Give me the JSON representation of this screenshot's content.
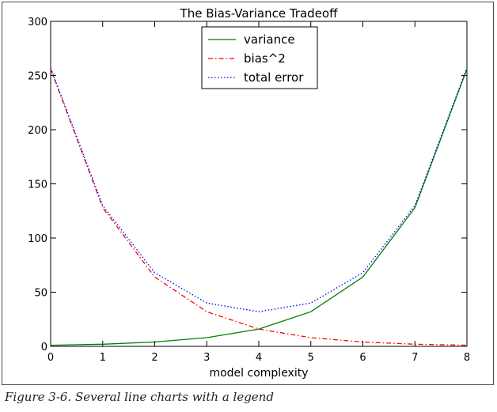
{
  "chart_data": {
    "type": "line",
    "title": "The Bias-Variance Tradeoff",
    "xlabel": "model complexity",
    "ylabel": "",
    "xlim": [
      0,
      8
    ],
    "ylim": [
      0,
      300
    ],
    "xticks": [
      "0",
      "1",
      "2",
      "3",
      "4",
      "5",
      "6",
      "7",
      "8"
    ],
    "yticks": [
      "0",
      "50",
      "100",
      "150",
      "200",
      "250",
      "300"
    ],
    "x": [
      0,
      1,
      2,
      3,
      4,
      5,
      6,
      7,
      8
    ],
    "grid": false,
    "legend_position": "top-center",
    "series": [
      {
        "name": "variance",
        "values": [
          1,
          2,
          4,
          8,
          16,
          32,
          64,
          128,
          256
        ],
        "color": "#008000",
        "style": "solid"
      },
      {
        "name": "bias^2",
        "values": [
          256,
          128,
          64,
          32,
          16,
          8,
          4,
          2,
          1
        ],
        "color": "#ff0000",
        "style": "dash-dot"
      },
      {
        "name": "total error",
        "values": [
          257,
          130,
          68,
          40,
          32,
          40,
          68,
          130,
          257
        ],
        "color": "#0000ff",
        "style": "dotted"
      }
    ]
  },
  "caption": "Figure 3-6. Several line charts with a legend"
}
